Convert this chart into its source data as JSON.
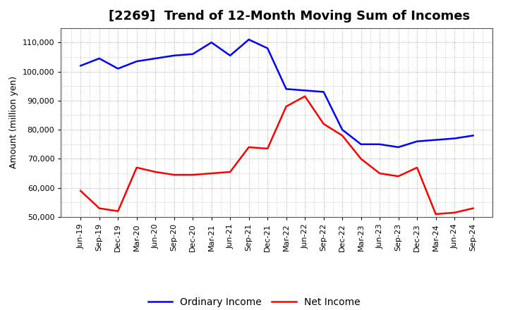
{
  "title": "[2269]  Trend of 12-Month Moving Sum of Incomes",
  "ylabel": "Amount (million yen)",
  "x_labels": [
    "Jun-19",
    "Sep-19",
    "Dec-19",
    "Mar-20",
    "Jun-20",
    "Sep-20",
    "Dec-20",
    "Mar-21",
    "Jun-21",
    "Sep-21",
    "Dec-21",
    "Mar-22",
    "Jun-22",
    "Sep-22",
    "Dec-22",
    "Mar-23",
    "Jun-23",
    "Sep-23",
    "Dec-23",
    "Mar-24",
    "Jun-24",
    "Sep-24"
  ],
  "ordinary_income": [
    102000,
    104500,
    101000,
    103500,
    104500,
    105500,
    106000,
    110000,
    105500,
    111000,
    108000,
    94000,
    93500,
    93000,
    80000,
    75000,
    75000,
    74000,
    76000,
    76500,
    77000,
    78000
  ],
  "net_income": [
    59000,
    53000,
    52000,
    67000,
    65500,
    64500,
    64500,
    65000,
    65500,
    74000,
    73500,
    88000,
    91500,
    82000,
    78000,
    70000,
    65000,
    64000,
    67000,
    51000,
    51500,
    53000
  ],
  "ordinary_color": "#0000ff",
  "net_color": "#ff0000",
  "ylim": [
    50000,
    115000
  ],
  "yticks": [
    50000,
    60000,
    70000,
    80000,
    90000,
    100000,
    110000
  ],
  "background_color": "#ffffff",
  "grid_color": "#999999",
  "title_fontsize": 13,
  "axis_fontsize": 9,
  "tick_fontsize": 8,
  "legend_fontsize": 10
}
